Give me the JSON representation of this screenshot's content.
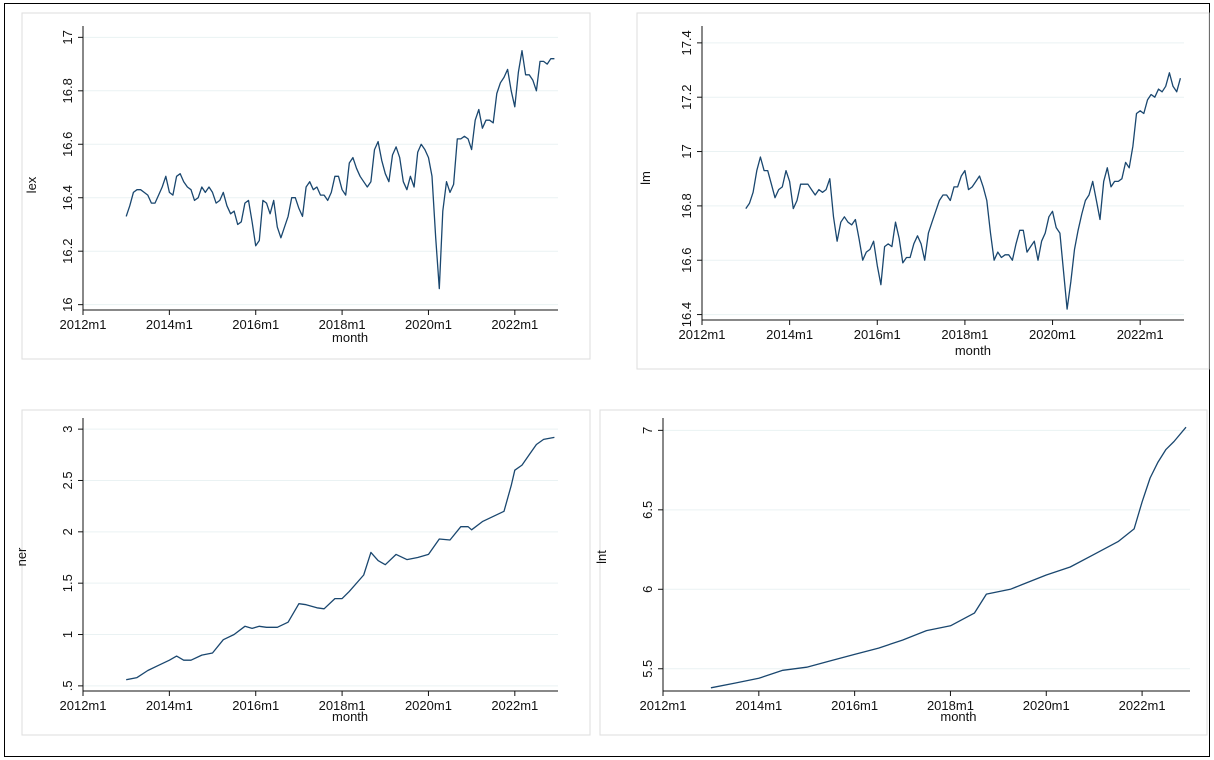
{
  "chart_data": [
    {
      "type": "line",
      "xlabel": "month",
      "ylabel": "lex",
      "x_ticks": [
        "2012m1",
        "2014m1",
        "2016m1",
        "2018m1",
        "2020m1",
        "2022m1"
      ],
      "y_ticks": [
        "16",
        "16.2",
        "16.4",
        "16.6",
        "16.8",
        "17"
      ],
      "xlim": [
        2012.0,
        2023.0
      ],
      "ylim": [
        15.98,
        17.02
      ],
      "grid": true,
      "series": [
        {
          "x": [
            2013.0,
            2013.083,
            2013.167,
            2013.25,
            2013.333,
            2013.417,
            2013.5,
            2013.583,
            2013.667,
            2013.75,
            2013.833,
            2013.917,
            2014.0,
            2014.083,
            2014.167,
            2014.25,
            2014.333,
            2014.417,
            2014.5,
            2014.583,
            2014.667,
            2014.75,
            2014.833,
            2014.917,
            2015.0,
            2015.083,
            2015.167,
            2015.25,
            2015.333,
            2015.417,
            2015.5,
            2015.583,
            2015.667,
            2015.75,
            2015.833,
            2015.917,
            2016.0,
            2016.083,
            2016.167,
            2016.25,
            2016.333,
            2016.417,
            2016.5,
            2016.583,
            2016.667,
            2016.75,
            2016.833,
            2016.917,
            2017.0,
            2017.083,
            2017.167,
            2017.25,
            2017.333,
            2017.417,
            2017.5,
            2017.583,
            2017.667,
            2017.75,
            2017.833,
            2017.917,
            2018.0,
            2018.083,
            2018.167,
            2018.25,
            2018.333,
            2018.417,
            2018.5,
            2018.583,
            2018.667,
            2018.75,
            2018.833,
            2018.917,
            2019.0,
            2019.083,
            2019.167,
            2019.25,
            2019.333,
            2019.417,
            2019.5,
            2019.583,
            2019.667,
            2019.75,
            2019.833,
            2019.917,
            2020.0,
            2020.083,
            2020.167,
            2020.25,
            2020.333,
            2020.417,
            2020.5,
            2020.583,
            2020.667,
            2020.75,
            2020.833,
            2020.917,
            2021.0,
            2021.083,
            2021.167,
            2021.25,
            2021.333,
            2021.417,
            2021.5,
            2021.583,
            2021.667,
            2021.75,
            2021.833,
            2021.917,
            2022.0,
            2022.083,
            2022.167,
            2022.25,
            2022.333,
            2022.417,
            2022.5,
            2022.583,
            2022.667,
            2022.75,
            2022.833,
            2022.917
          ],
          "y": [
            16.33,
            16.37,
            16.42,
            16.43,
            16.43,
            16.42,
            16.41,
            16.38,
            16.38,
            16.41,
            16.44,
            16.48,
            16.42,
            16.41,
            16.48,
            16.49,
            16.46,
            16.44,
            16.43,
            16.39,
            16.4,
            16.44,
            16.42,
            16.44,
            16.42,
            16.38,
            16.39,
            16.42,
            16.37,
            16.34,
            16.35,
            16.3,
            16.31,
            16.38,
            16.39,
            16.31,
            16.22,
            16.24,
            16.39,
            16.38,
            16.34,
            16.39,
            16.29,
            16.25,
            16.29,
            16.33,
            16.4,
            16.4,
            16.36,
            16.33,
            16.44,
            16.46,
            16.43,
            16.44,
            16.41,
            16.41,
            16.39,
            16.42,
            16.48,
            16.48,
            16.43,
            16.41,
            16.53,
            16.55,
            16.51,
            16.48,
            16.46,
            16.44,
            16.46,
            16.58,
            16.61,
            16.54,
            16.49,
            16.46,
            16.56,
            16.59,
            16.55,
            16.46,
            16.43,
            16.48,
            16.44,
            16.57,
            16.6,
            16.58,
            16.55,
            16.48,
            16.25,
            16.06,
            16.35,
            16.46,
            16.42,
            16.45,
            16.62,
            16.62,
            16.63,
            16.62,
            16.58,
            16.69,
            16.73,
            16.66,
            16.69,
            16.69,
            16.68,
            16.79,
            16.83,
            16.85,
            16.88,
            16.8,
            16.74,
            16.87,
            16.95,
            16.86,
            16.86,
            16.84,
            16.8,
            16.91,
            16.91,
            16.9,
            16.92,
            16.92
          ]
        }
      ]
    },
    {
      "type": "line",
      "xlabel": "month",
      "ylabel": "lm",
      "x_ticks": [
        "2012m1",
        "2014m1",
        "2016m1",
        "2018m1",
        "2020m1",
        "2022m1"
      ],
      "y_ticks": [
        "16.4",
        "16.6",
        "16.8",
        "17",
        "17.2",
        "17.4"
      ],
      "xlim": [
        2012.0,
        2023.0
      ],
      "ylim": [
        16.38,
        17.44
      ],
      "grid": true,
      "series": [
        {
          "x": [
            2013.0,
            2013.083,
            2013.167,
            2013.25,
            2013.333,
            2013.417,
            2013.5,
            2013.583,
            2013.667,
            2013.75,
            2013.833,
            2013.917,
            2014.0,
            2014.083,
            2014.167,
            2014.25,
            2014.333,
            2014.417,
            2014.5,
            2014.583,
            2014.667,
            2014.75,
            2014.833,
            2014.917,
            2015.0,
            2015.083,
            2015.167,
            2015.25,
            2015.333,
            2015.417,
            2015.5,
            2015.583,
            2015.667,
            2015.75,
            2015.833,
            2015.917,
            2016.0,
            2016.083,
            2016.167,
            2016.25,
            2016.333,
            2016.417,
            2016.5,
            2016.583,
            2016.667,
            2016.75,
            2016.833,
            2016.917,
            2017.0,
            2017.083,
            2017.167,
            2017.25,
            2017.333,
            2017.417,
            2017.5,
            2017.583,
            2017.667,
            2017.75,
            2017.833,
            2017.917,
            2018.0,
            2018.083,
            2018.167,
            2018.25,
            2018.333,
            2018.417,
            2018.5,
            2018.583,
            2018.667,
            2018.75,
            2018.833,
            2018.917,
            2019.0,
            2019.083,
            2019.167,
            2019.25,
            2019.333,
            2019.417,
            2019.5,
            2019.583,
            2019.667,
            2019.75,
            2019.833,
            2019.917,
            2020.0,
            2020.083,
            2020.167,
            2020.25,
            2020.333,
            2020.417,
            2020.5,
            2020.583,
            2020.667,
            2020.75,
            2020.833,
            2020.917,
            2021.0,
            2021.083,
            2021.167,
            2021.25,
            2021.333,
            2021.417,
            2021.5,
            2021.583,
            2021.667,
            2021.75,
            2021.833,
            2021.917,
            2022.0,
            2022.083,
            2022.167,
            2022.25,
            2022.333,
            2022.417,
            2022.5,
            2022.583,
            2022.667,
            2022.75,
            2022.833,
            2022.917
          ],
          "y": [
            16.79,
            16.81,
            16.85,
            16.93,
            16.98,
            16.93,
            16.93,
            16.88,
            16.83,
            16.86,
            16.87,
            16.93,
            16.89,
            16.79,
            16.82,
            16.88,
            16.88,
            16.88,
            16.86,
            16.84,
            16.86,
            16.85,
            16.86,
            16.9,
            16.76,
            16.67,
            16.74,
            16.76,
            16.74,
            16.73,
            16.75,
            16.68,
            16.6,
            16.63,
            16.64,
            16.67,
            16.58,
            16.51,
            16.65,
            16.66,
            16.65,
            16.74,
            16.68,
            16.59,
            16.61,
            16.61,
            16.66,
            16.69,
            16.66,
            16.6,
            16.7,
            16.74,
            16.78,
            16.82,
            16.84,
            16.84,
            16.82,
            16.87,
            16.87,
            16.91,
            16.93,
            16.86,
            16.87,
            16.89,
            16.91,
            16.87,
            16.82,
            16.7,
            16.6,
            16.63,
            16.61,
            16.62,
            16.62,
            16.6,
            16.66,
            16.71,
            16.71,
            16.63,
            16.65,
            16.67,
            16.6,
            16.67,
            16.7,
            16.76,
            16.78,
            16.72,
            16.7,
            16.56,
            16.42,
            16.52,
            16.64,
            16.71,
            16.77,
            16.82,
            16.84,
            16.89,
            16.82,
            16.75,
            16.89,
            16.94,
            16.87,
            16.89,
            16.89,
            16.9,
            16.96,
            16.94,
            17.02,
            17.14,
            17.15,
            17.14,
            17.19,
            17.21,
            17.2,
            17.23,
            17.22,
            17.24,
            17.29,
            17.24,
            17.22,
            17.27
          ]
        }
      ]
    },
    {
      "type": "line",
      "xlabel": "month",
      "ylabel": "ner",
      "x_ticks": [
        "2012m1",
        "2014m1",
        "2016m1",
        "2018m1",
        "2020m1",
        "2022m1"
      ],
      "y_ticks": [
        ".5",
        "1",
        "1.5",
        "2",
        "2.5",
        "3"
      ],
      "xlim": [
        2012.0,
        2023.0
      ],
      "ylim": [
        0.45,
        3.05
      ],
      "grid": true,
      "series": [
        {
          "x": [
            2013.0,
            2013.25,
            2013.5,
            2013.75,
            2014.0,
            2014.167,
            2014.333,
            2014.5,
            2014.75,
            2015.0,
            2015.25,
            2015.5,
            2015.75,
            2015.917,
            2016.083,
            2016.25,
            2016.5,
            2016.75,
            2017.0,
            2017.167,
            2017.417,
            2017.583,
            2017.833,
            2018.0,
            2018.167,
            2018.5,
            2018.667,
            2018.833,
            2019.0,
            2019.25,
            2019.5,
            2019.75,
            2020.0,
            2020.25,
            2020.5,
            2020.75,
            2020.917,
            2021.0,
            2021.25,
            2021.5,
            2021.75,
            2021.917,
            2022.0,
            2022.167,
            2022.333,
            2022.5,
            2022.667,
            2022.917
          ],
          "y": [
            0.56,
            0.58,
            0.65,
            0.7,
            0.75,
            0.79,
            0.75,
            0.75,
            0.8,
            0.82,
            0.95,
            1.0,
            1.08,
            1.06,
            1.08,
            1.07,
            1.07,
            1.12,
            1.3,
            1.29,
            1.26,
            1.25,
            1.35,
            1.35,
            1.42,
            1.58,
            1.8,
            1.72,
            1.68,
            1.78,
            1.73,
            1.75,
            1.78,
            1.93,
            1.92,
            2.05,
            2.05,
            2.02,
            2.1,
            2.15,
            2.2,
            2.45,
            2.6,
            2.65,
            2.75,
            2.85,
            2.9,
            2.92
          ]
        }
      ]
    },
    {
      "type": "line",
      "xlabel": "month",
      "ylabel": "lnt",
      "x_ticks": [
        "2012m1",
        "2014m1",
        "2016m1",
        "2018m1",
        "2020m1",
        "2022m1"
      ],
      "y_ticks": [
        "5.5",
        "6",
        "6.5",
        "7"
      ],
      "xlim": [
        2012.0,
        2023.0
      ],
      "ylim": [
        5.36,
        7.04
      ],
      "grid": true,
      "series": [
        {
          "x": [
            2013.0,
            2013.5,
            2014.0,
            2014.5,
            2015.0,
            2015.5,
            2016.0,
            2016.5,
            2017.0,
            2017.5,
            2018.0,
            2018.5,
            2018.75,
            2018.917,
            2019.25,
            2019.5,
            2020.0,
            2020.5,
            2021.0,
            2021.5,
            2021.833,
            2022.0,
            2022.167,
            2022.333,
            2022.5,
            2022.667,
            2022.917
          ],
          "y": [
            5.38,
            5.41,
            5.44,
            5.49,
            5.51,
            5.55,
            5.59,
            5.63,
            5.68,
            5.74,
            5.77,
            5.85,
            5.97,
            5.98,
            6.0,
            6.03,
            6.09,
            6.14,
            6.22,
            6.3,
            6.38,
            6.55,
            6.7,
            6.8,
            6.88,
            6.93,
            7.02
          ]
        }
      ]
    }
  ]
}
